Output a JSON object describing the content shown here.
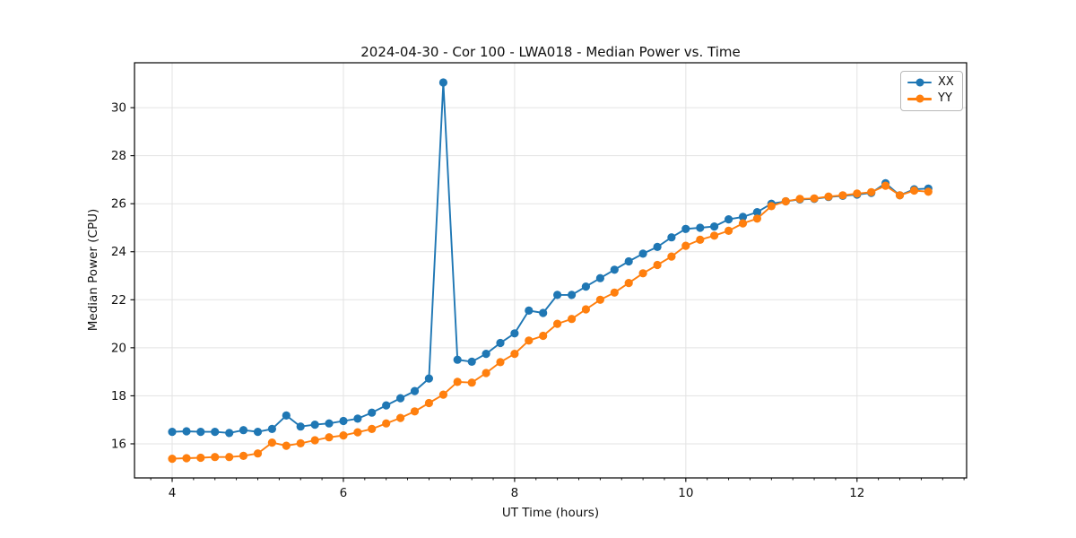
{
  "chart_data": {
    "type": "line",
    "title": "2024-04-30 - Cor 100 - LWA018 - Median Power vs. Time",
    "xlabel": "UT Time (hours)",
    "ylabel": "Median Power (CPU)",
    "xlim": [
      3.56,
      13.28
    ],
    "ylim": [
      14.58,
      31.87
    ],
    "xticks": [
      4,
      6,
      8,
      10,
      12
    ],
    "yticks": [
      16,
      18,
      20,
      22,
      24,
      26,
      28,
      30
    ],
    "x_minor_tick_step": 0.25,
    "grid": true,
    "grid_color": "#e3e3e3",
    "legend_position": "upper right",
    "marker": "circle",
    "x": [
      4.0,
      4.167,
      4.333,
      4.5,
      4.667,
      4.833,
      5.0,
      5.167,
      5.333,
      5.5,
      5.667,
      5.833,
      6.0,
      6.167,
      6.333,
      6.5,
      6.667,
      6.833,
      7.0,
      7.167,
      7.333,
      7.5,
      7.667,
      7.833,
      8.0,
      8.167,
      8.333,
      8.5,
      8.667,
      8.833,
      9.0,
      9.167,
      9.333,
      9.5,
      9.667,
      9.833,
      10.0,
      10.167,
      10.333,
      10.5,
      10.667,
      10.833,
      11.0,
      11.167,
      11.333,
      11.5,
      11.667,
      11.833,
      12.0,
      12.167,
      12.333,
      12.5,
      12.667,
      12.833
    ],
    "series": [
      {
        "name": "XX",
        "color": "#1f77b4",
        "values": [
          16.5,
          16.52,
          16.5,
          16.5,
          16.45,
          16.57,
          16.5,
          16.62,
          17.18,
          16.72,
          16.8,
          16.85,
          16.95,
          17.05,
          17.3,
          17.6,
          17.9,
          18.2,
          18.72,
          31.05,
          19.5,
          19.42,
          19.75,
          20.2,
          20.6,
          21.55,
          21.45,
          22.2,
          22.2,
          22.55,
          22.9,
          23.25,
          23.6,
          23.92,
          24.2,
          24.6,
          24.95,
          25.0,
          25.05,
          25.35,
          25.45,
          25.65,
          26.0,
          26.1,
          26.18,
          26.2,
          26.28,
          26.33,
          26.38,
          26.45,
          26.85,
          26.35,
          26.6,
          26.63
        ]
      },
      {
        "name": "YY",
        "color": "#ff7f0e",
        "values": [
          15.38,
          15.4,
          15.42,
          15.45,
          15.45,
          15.5,
          15.6,
          16.05,
          15.92,
          16.02,
          16.15,
          16.27,
          16.35,
          16.48,
          16.62,
          16.85,
          17.08,
          17.35,
          17.7,
          18.05,
          18.58,
          18.55,
          18.95,
          19.4,
          19.75,
          20.3,
          20.5,
          21.0,
          21.2,
          21.6,
          22.0,
          22.3,
          22.7,
          23.1,
          23.45,
          23.8,
          24.25,
          24.5,
          24.67,
          24.87,
          25.18,
          25.38,
          25.9,
          26.1,
          26.2,
          26.22,
          26.3,
          26.35,
          26.42,
          26.48,
          26.75,
          26.35,
          26.55,
          26.5
        ]
      }
    ]
  }
}
